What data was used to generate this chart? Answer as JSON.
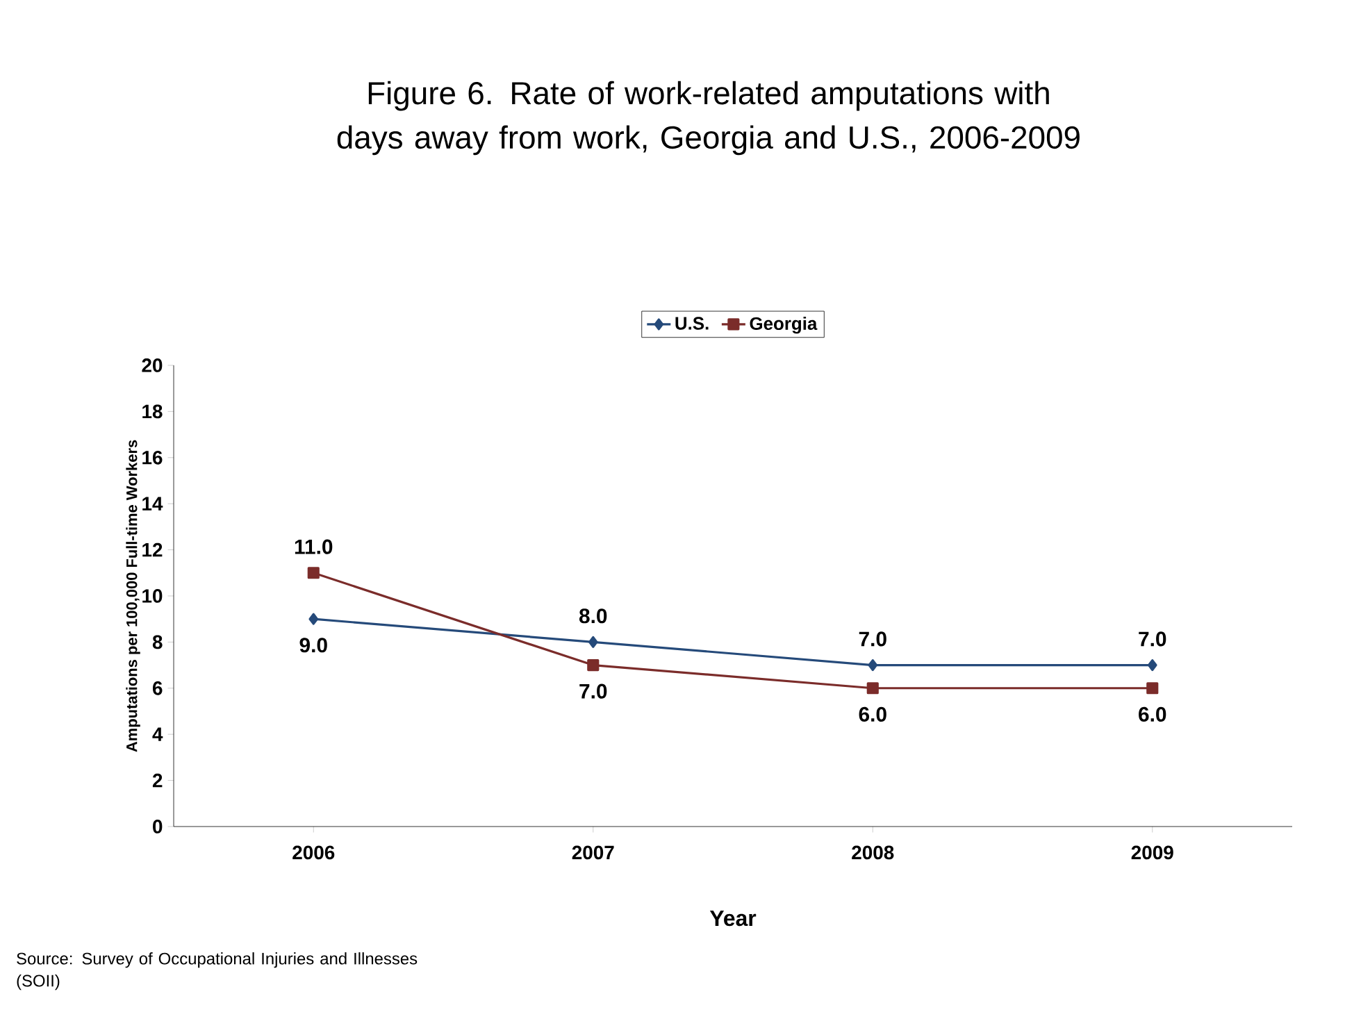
{
  "chart_data": {
    "type": "line",
    "title": "Figure 6. Rate of work-related amputations with days away from work, Georgia and U.S., 2006-2009",
    "xlabel": "Year",
    "ylabel": "Amputations per 100,000 Full-time Workers",
    "annotations": [
      "Source:  Survey of Occupational Injuries and Illnesses (SOII)"
    ],
    "categories": [
      "2006",
      "2007",
      "2008",
      "2009"
    ],
    "series": [
      {
        "name": "U.S.",
        "color": "#254a7a",
        "marker": "diamond",
        "values": [
          9,
          8,
          7,
          7
        ],
        "value_labels": [
          "9.0",
          "8.0",
          "7.0",
          "7.0"
        ]
      },
      {
        "name": "Georgia",
        "color": "#7b2c2a",
        "marker": "square",
        "values": [
          11,
          7,
          6,
          6
        ],
        "value_labels": [
          "11.0",
          "7.0",
          "6.0",
          "6.0"
        ]
      }
    ],
    "ylim": [
      0,
      20
    ],
    "yticks": [
      0,
      2,
      4,
      6,
      8,
      10,
      12,
      14,
      16,
      18,
      20
    ],
    "legend": "top",
    "grid": false,
    "line_style": "solid"
  }
}
